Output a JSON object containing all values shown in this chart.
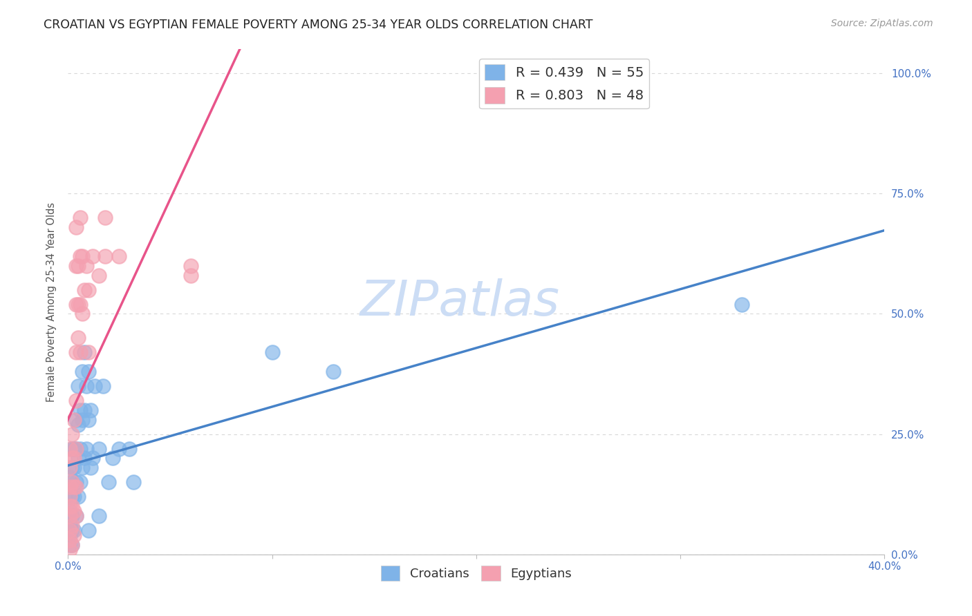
{
  "title": "CROATIAN VS EGYPTIAN FEMALE POVERTY AMONG 25-34 YEAR OLDS CORRELATION CHART",
  "source": "Source: ZipAtlas.com",
  "ylabel": "Female Poverty Among 25-34 Year Olds",
  "xlim": [
    0.0,
    0.4
  ],
  "ylim": [
    0.0,
    1.05
  ],
  "yticks": [
    0.0,
    0.25,
    0.5,
    0.75,
    1.0
  ],
  "ytick_labels": [
    "0.0%",
    "25.0%",
    "50.0%",
    "75.0%",
    "100.0%"
  ],
  "xticks": [
    0.0,
    0.1,
    0.2,
    0.3,
    0.4
  ],
  "xtick_labels": [
    "0.0%",
    "",
    "",
    "",
    "40.0%"
  ],
  "croatian_R": 0.439,
  "croatian_N": 55,
  "egyptian_R": 0.803,
  "egyptian_N": 48,
  "croatian_color": "#7fb3e8",
  "egyptian_color": "#f4a0b0",
  "croatian_line_color": "#4682c8",
  "egyptian_line_color": "#e8548a",
  "background_color": "#ffffff",
  "grid_color": "#d8d8d8",
  "watermark_text": "ZIPatlas",
  "watermark_color": "#ccddf5",
  "croatian_points": [
    [
      0.001,
      0.02
    ],
    [
      0.001,
      0.04
    ],
    [
      0.001,
      0.06
    ],
    [
      0.001,
      0.09
    ],
    [
      0.001,
      0.12
    ],
    [
      0.001,
      0.14
    ],
    [
      0.001,
      0.16
    ],
    [
      0.002,
      0.02
    ],
    [
      0.002,
      0.05
    ],
    [
      0.002,
      0.08
    ],
    [
      0.002,
      0.12
    ],
    [
      0.002,
      0.15
    ],
    [
      0.002,
      0.18
    ],
    [
      0.002,
      0.22
    ],
    [
      0.003,
      0.05
    ],
    [
      0.003,
      0.12
    ],
    [
      0.003,
      0.18
    ],
    [
      0.003,
      0.22
    ],
    [
      0.004,
      0.08
    ],
    [
      0.004,
      0.15
    ],
    [
      0.004,
      0.22
    ],
    [
      0.004,
      0.28
    ],
    [
      0.005,
      0.12
    ],
    [
      0.005,
      0.2
    ],
    [
      0.005,
      0.27
    ],
    [
      0.005,
      0.35
    ],
    [
      0.006,
      0.15
    ],
    [
      0.006,
      0.22
    ],
    [
      0.006,
      0.3
    ],
    [
      0.007,
      0.18
    ],
    [
      0.007,
      0.28
    ],
    [
      0.007,
      0.38
    ],
    [
      0.008,
      0.2
    ],
    [
      0.008,
      0.3
    ],
    [
      0.008,
      0.42
    ],
    [
      0.009,
      0.22
    ],
    [
      0.009,
      0.35
    ],
    [
      0.01,
      0.28
    ],
    [
      0.01,
      0.38
    ],
    [
      0.01,
      0.05
    ],
    [
      0.011,
      0.18
    ],
    [
      0.011,
      0.3
    ],
    [
      0.012,
      0.2
    ],
    [
      0.013,
      0.35
    ],
    [
      0.015,
      0.08
    ],
    [
      0.015,
      0.22
    ],
    [
      0.017,
      0.35
    ],
    [
      0.02,
      0.15
    ],
    [
      0.022,
      0.2
    ],
    [
      0.025,
      0.22
    ],
    [
      0.03,
      0.22
    ],
    [
      0.032,
      0.15
    ],
    [
      0.1,
      0.42
    ],
    [
      0.13,
      0.38
    ],
    [
      0.33,
      0.52
    ]
  ],
  "egyptian_points": [
    [
      0.001,
      0.01
    ],
    [
      0.001,
      0.03
    ],
    [
      0.001,
      0.05
    ],
    [
      0.001,
      0.08
    ],
    [
      0.001,
      0.1
    ],
    [
      0.001,
      0.12
    ],
    [
      0.001,
      0.14
    ],
    [
      0.001,
      0.18
    ],
    [
      0.001,
      0.22
    ],
    [
      0.002,
      0.02
    ],
    [
      0.002,
      0.06
    ],
    [
      0.002,
      0.1
    ],
    [
      0.002,
      0.15
    ],
    [
      0.002,
      0.2
    ],
    [
      0.002,
      0.25
    ],
    [
      0.003,
      0.04
    ],
    [
      0.003,
      0.09
    ],
    [
      0.003,
      0.14
    ],
    [
      0.003,
      0.2
    ],
    [
      0.003,
      0.28
    ],
    [
      0.004,
      0.08
    ],
    [
      0.004,
      0.14
    ],
    [
      0.004,
      0.22
    ],
    [
      0.004,
      0.32
    ],
    [
      0.004,
      0.42
    ],
    [
      0.004,
      0.52
    ],
    [
      0.004,
      0.6
    ],
    [
      0.004,
      0.68
    ],
    [
      0.005,
      0.45
    ],
    [
      0.005,
      0.52
    ],
    [
      0.005,
      0.6
    ],
    [
      0.006,
      0.42
    ],
    [
      0.006,
      0.52
    ],
    [
      0.006,
      0.62
    ],
    [
      0.006,
      0.7
    ],
    [
      0.007,
      0.5
    ],
    [
      0.007,
      0.62
    ],
    [
      0.008,
      0.55
    ],
    [
      0.009,
      0.6
    ],
    [
      0.01,
      0.42
    ],
    [
      0.01,
      0.55
    ],
    [
      0.012,
      0.62
    ],
    [
      0.015,
      0.58
    ],
    [
      0.018,
      0.62
    ],
    [
      0.018,
      0.7
    ],
    [
      0.025,
      0.62
    ],
    [
      0.06,
      0.6
    ],
    [
      0.06,
      0.58
    ]
  ],
  "title_fontsize": 12.5,
  "axis_label_fontsize": 10.5,
  "tick_fontsize": 11,
  "legend_fontsize": 14,
  "source_fontsize": 10
}
